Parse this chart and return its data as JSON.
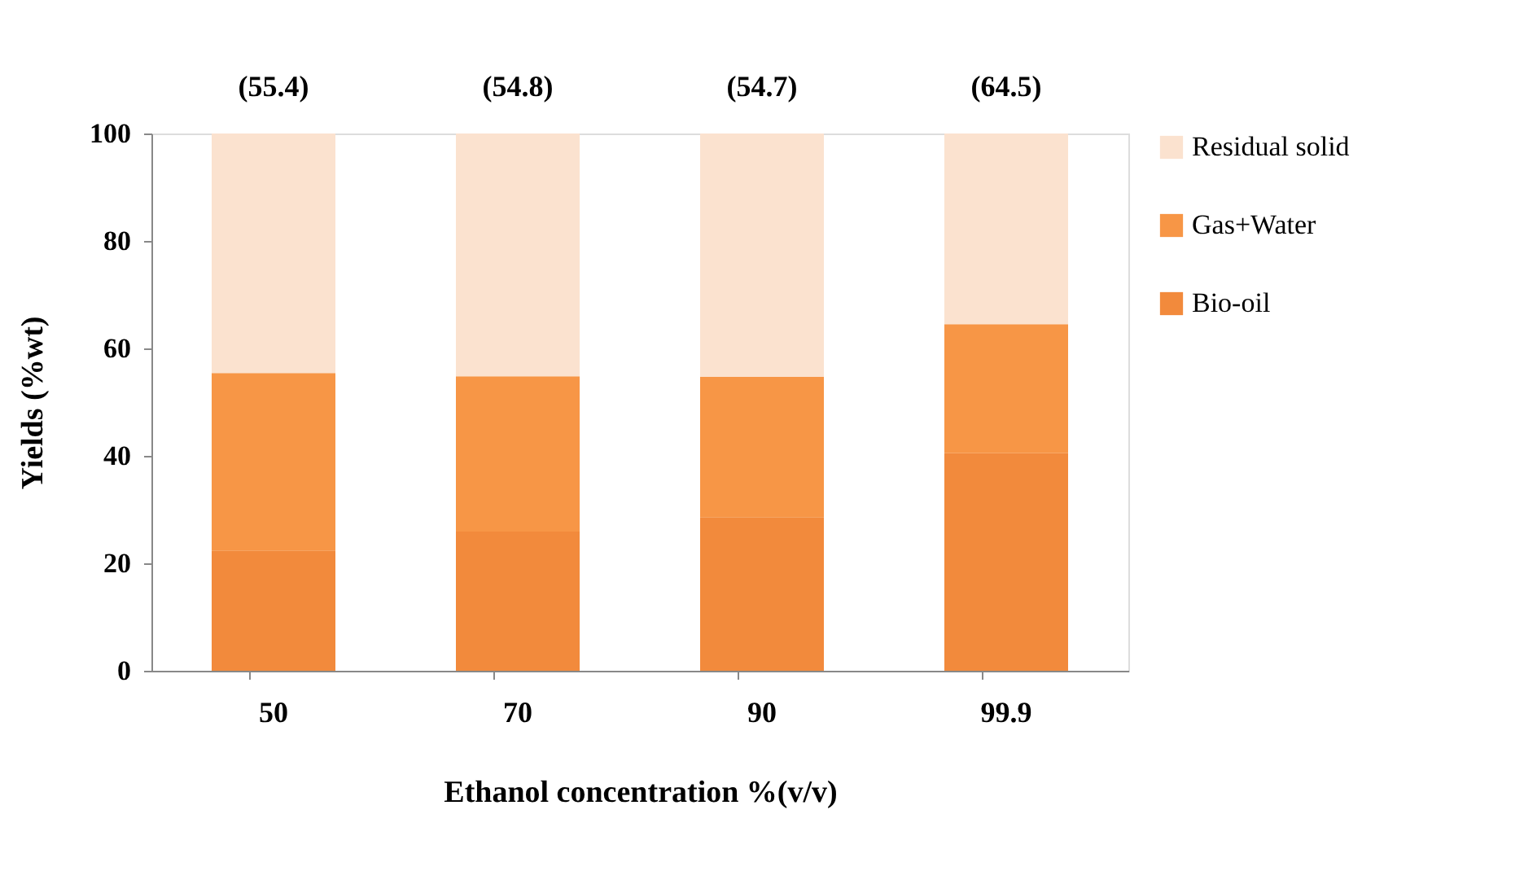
{
  "chart_data": {
    "type": "bar",
    "stacked": true,
    "xlabel": "Ethanol concentration %(v/v)",
    "ylabel": "Yields  (%wt)",
    "categories": [
      "50",
      "70",
      "90",
      "99.9"
    ],
    "series": [
      {
        "name": "Bio-oil",
        "color": "#f28a3c",
        "values": [
          22.4,
          25.9,
          28.6,
          40.5
        ]
      },
      {
        "name": "Gas+Water",
        "color": "#f79646",
        "values": [
          33.0,
          28.9,
          26.1,
          24.0
        ]
      },
      {
        "name": "Residual solid",
        "color": "#fbe2cf",
        "values": [
          44.6,
          45.2,
          45.3,
          35.5
        ]
      }
    ],
    "annotations": [
      {
        "text": "(55.4)",
        "x": "50",
        "y": 100
      },
      {
        "text": "(54.8)",
        "x": "70",
        "y": 100
      },
      {
        "text": "(54.7)",
        "x": "90",
        "y": 100
      },
      {
        "text": "(64.5)",
        "x": "99.9",
        "y": 100
      }
    ],
    "ylim": [
      0,
      100
    ],
    "yticks": [
      0,
      20,
      40,
      60,
      80,
      100
    ],
    "grid": false,
    "legend": "right"
  }
}
